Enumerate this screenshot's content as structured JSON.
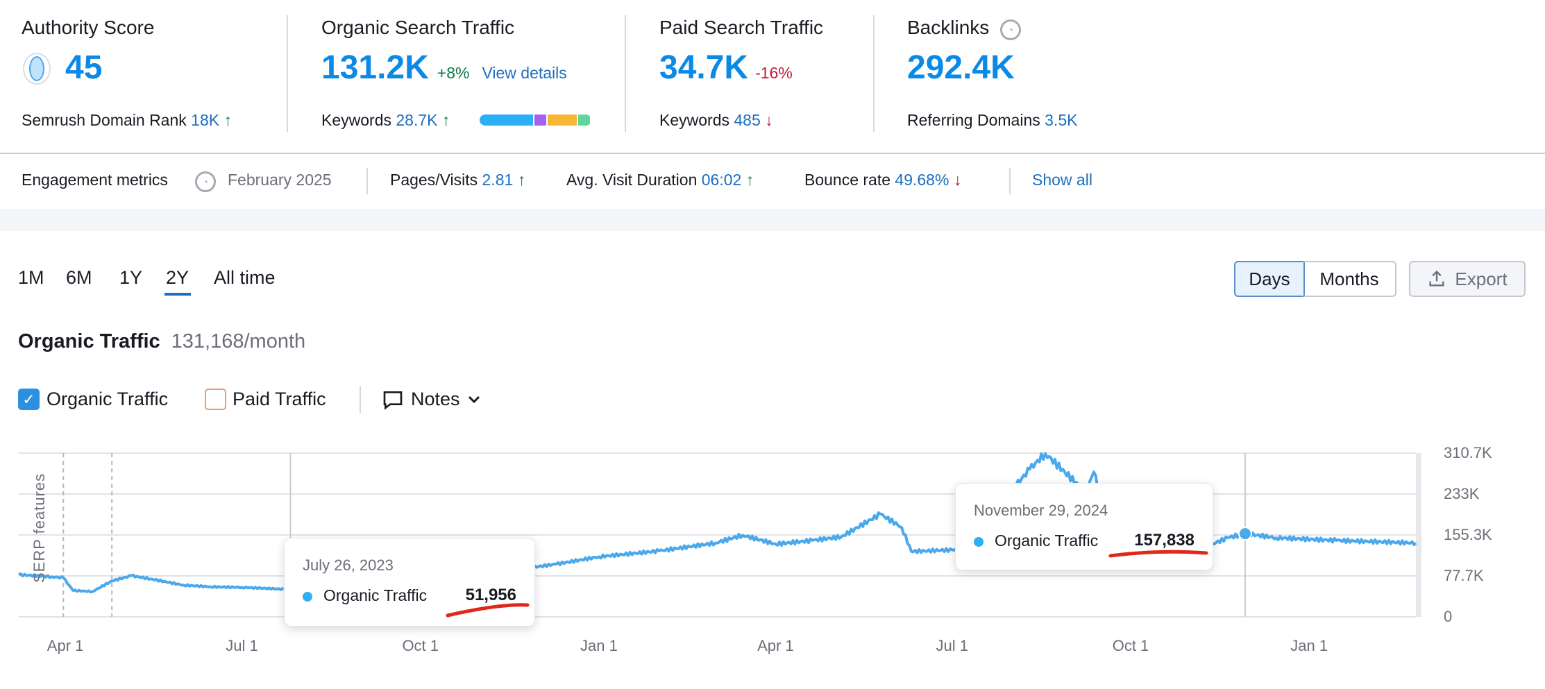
{
  "metrics": {
    "authority": {
      "title": "Authority Score",
      "value": "45",
      "sub_label": "Semrush Domain Rank",
      "sub_value": "18K",
      "sub_arrow": "↑"
    },
    "organic": {
      "title": "Organic Search Traffic",
      "value": "131.2K",
      "change": "+8%",
      "link": "View details",
      "sub_label": "Keywords",
      "sub_value": "28.7K",
      "sub_arrow": "↑",
      "keyword_bar": [
        {
          "color": "#2bb0f5",
          "share": 0.45
        },
        {
          "color": "#a461f2",
          "share": 0.1
        },
        {
          "color": "#f8b733",
          "share": 0.25
        },
        {
          "color": "#5ed69c",
          "share": 0.1
        }
      ]
    },
    "paid": {
      "title": "Paid Search Traffic",
      "value": "34.7K",
      "change": "-16%",
      "sub_label": "Keywords",
      "sub_value": "485",
      "sub_arrow": "↓"
    },
    "backlinks": {
      "title": "Backlinks",
      "value": "292.4K",
      "sub_label": "Referring Domains",
      "sub_value": "3.5K"
    }
  },
  "engagement": {
    "label": "Engagement metrics",
    "date": "February 2025",
    "pages_label": "Pages/Visits",
    "pages_value": "2.81",
    "pages_arrow": "↑",
    "duration_label": "Avg. Visit Duration",
    "duration_value": "06:02",
    "duration_arrow": "↑",
    "bounce_label": "Bounce rate",
    "bounce_value": "49.68%",
    "bounce_arrow": "↓",
    "show_all": "Show all"
  },
  "periods": [
    "1M",
    "6M",
    "1Y",
    "2Y",
    "All time"
  ],
  "active_period": "2Y",
  "view_toggle": {
    "days": "Days",
    "months": "Months",
    "active": "Days"
  },
  "export_label": "Export",
  "traffic_title": "Organic Traffic",
  "traffic_value": "131,168/month",
  "legend": {
    "organic": "Organic Traffic",
    "paid": "Paid Traffic",
    "notes": "Notes"
  },
  "serp_label": "SERP features",
  "tooltips": [
    {
      "date": "July 26, 2023",
      "series": "Organic Traffic",
      "value": "51,956"
    },
    {
      "date": "November 29, 2024",
      "series": "Organic Traffic",
      "value": "157,838"
    }
  ],
  "chart_data": {
    "type": "line",
    "title": "Organic Traffic",
    "ylabel": "",
    "xlabel": "",
    "ylim": [
      0,
      310.7
    ],
    "y_unit": "K",
    "y_ticks": [
      "0",
      "77.7K",
      "155.3K",
      "233K",
      "310.7K"
    ],
    "x_ticks": [
      {
        "label": "Apr 1",
        "date": "2023-04-01"
      },
      {
        "label": "Jul 1",
        "date": "2023-07-01"
      },
      {
        "label": "Oct 1",
        "date": "2023-10-01"
      },
      {
        "label": "Jan 1",
        "date": "2024-01-01"
      },
      {
        "label": "Apr 1",
        "date": "2024-04-01"
      },
      {
        "label": "Jul 1",
        "date": "2024-07-01"
      },
      {
        "label": "Oct 1",
        "date": "2024-10-01"
      },
      {
        "label": "Jan 1",
        "date": "2025-01-01"
      }
    ],
    "xrange": [
      "2023-03-08",
      "2025-02-25"
    ],
    "series": [
      {
        "name": "Organic Traffic",
        "color": "#4aa8ec",
        "points": [
          [
            "2023-03-08",
            80
          ],
          [
            "2023-03-25",
            76
          ],
          [
            "2023-03-31",
            74
          ],
          [
            "2023-04-05",
            50
          ],
          [
            "2023-04-15",
            48
          ],
          [
            "2023-04-25",
            68
          ],
          [
            "2023-05-05",
            78
          ],
          [
            "2023-05-15",
            72
          ],
          [
            "2023-06-01",
            60
          ],
          [
            "2023-06-15",
            57
          ],
          [
            "2023-07-01",
            56
          ],
          [
            "2023-07-26",
            51.956
          ],
          [
            "2023-08-15",
            58
          ],
          [
            "2023-09-01",
            62
          ],
          [
            "2023-10-01",
            70
          ],
          [
            "2023-11-01",
            80
          ],
          [
            "2023-11-20",
            90
          ],
          [
            "2023-12-10",
            100
          ],
          [
            "2024-01-01",
            114
          ],
          [
            "2024-02-01",
            125
          ],
          [
            "2024-03-01",
            140
          ],
          [
            "2024-03-15",
            155
          ],
          [
            "2024-04-01",
            138
          ],
          [
            "2024-04-20",
            145
          ],
          [
            "2024-05-05",
            152
          ],
          [
            "2024-05-25",
            195
          ],
          [
            "2024-06-05",
            170
          ],
          [
            "2024-06-10",
            124
          ],
          [
            "2024-07-01",
            127
          ],
          [
            "2024-07-25",
            129
          ],
          [
            "2024-08-01",
            130
          ],
          [
            "2024-08-03",
            250
          ],
          [
            "2024-08-10",
            280
          ],
          [
            "2024-08-18",
            310
          ],
          [
            "2024-08-28",
            275
          ],
          [
            "2024-09-08",
            236
          ],
          [
            "2024-09-12",
            275
          ],
          [
            "2024-09-18",
            198
          ],
          [
            "2024-09-25",
            160
          ],
          [
            "2024-10-01",
            155
          ],
          [
            "2024-10-08",
            189
          ],
          [
            "2024-10-14",
            150
          ],
          [
            "2024-10-22",
            133
          ],
          [
            "2024-11-05",
            127
          ],
          [
            "2024-11-20",
            150
          ],
          [
            "2024-11-29",
            157.838
          ],
          [
            "2024-12-15",
            150
          ],
          [
            "2025-01-15",
            145
          ],
          [
            "2025-02-25",
            140
          ]
        ]
      }
    ],
    "annotations": [
      {
        "date": "2023-03-31",
        "type": "serp-feature"
      },
      {
        "date": "2023-04-25",
        "type": "serp-feature"
      }
    ],
    "highlighted": [
      "2023-07-26",
      "2024-11-29"
    ]
  }
}
